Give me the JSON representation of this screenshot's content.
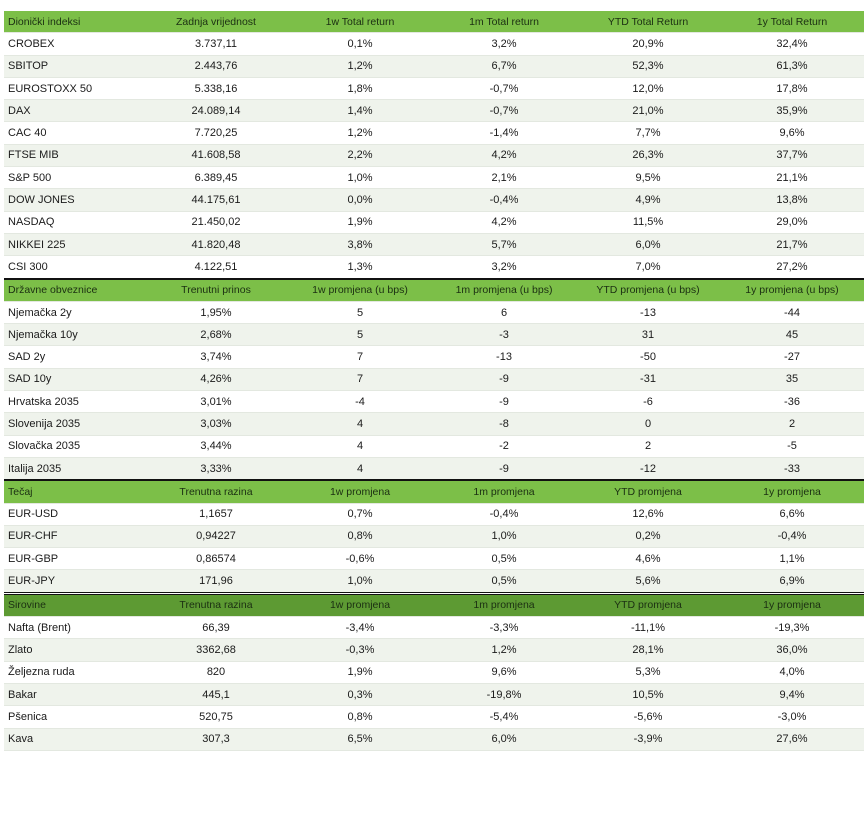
{
  "colors": {
    "header_bg": "#7cbf48",
    "header_bg_dark": "#5d9a33",
    "row_alt_bg": "#eff3ec",
    "row_bg": "#ffffff"
  },
  "sections": [
    {
      "header": [
        "Dionički indeksi",
        "Zadnja vrijednost",
        "1w Total return",
        "1m Total return",
        "YTD Total Return",
        "1y Total Return"
      ],
      "header_color": "#7cbf48",
      "rows": [
        [
          "CROBEX",
          "3.737,11",
          "0,1%",
          "3,2%",
          "20,9%",
          "32,4%"
        ],
        [
          "SBITOP",
          "2.443,76",
          "1,2%",
          "6,7%",
          "52,3%",
          "61,3%"
        ],
        [
          "EUROSTOXX 50",
          "5.338,16",
          "1,8%",
          "-0,7%",
          "12,0%",
          "17,8%"
        ],
        [
          "DAX",
          "24.089,14",
          "1,4%",
          "-0,7%",
          "21,0%",
          "35,9%"
        ],
        [
          "CAC 40",
          "7.720,25",
          "1,2%",
          "-1,4%",
          "7,7%",
          "9,6%"
        ],
        [
          "FTSE MIB",
          "41.608,58",
          "2,2%",
          "4,2%",
          "26,3%",
          "37,7%"
        ],
        [
          "S&P 500",
          "6.389,45",
          "1,0%",
          "2,1%",
          "9,5%",
          "21,1%"
        ],
        [
          "DOW JONES",
          "44.175,61",
          "0,0%",
          "-0,4%",
          "4,9%",
          "13,8%"
        ],
        [
          "NASDAQ",
          "21.450,02",
          "1,9%",
          "4,2%",
          "11,5%",
          "29,0%"
        ],
        [
          "NIKKEI 225",
          "41.820,48",
          "3,8%",
          "5,7%",
          "6,0%",
          "21,7%"
        ],
        [
          "CSI 300",
          "4.122,51",
          "1,3%",
          "3,2%",
          "7,0%",
          "27,2%"
        ]
      ]
    },
    {
      "header": [
        "Državne obveznice",
        "Trenutni prinos",
        "1w promjena (u bps)",
        "1m promjena (u bps)",
        "YTD promjena (u bps)",
        "1y promjena (u bps)"
      ],
      "header_color": "#7cbf48",
      "rows": [
        [
          "Njemačka 2y",
          "1,95%",
          "5",
          "6",
          "-13",
          "-44"
        ],
        [
          "Njemačka 10y",
          "2,68%",
          "5",
          "-3",
          "31",
          "45"
        ],
        [
          "SAD 2y",
          "3,74%",
          "7",
          "-13",
          "-50",
          "-27"
        ],
        [
          "SAD 10y",
          "4,26%",
          "7",
          "-9",
          "-31",
          "35"
        ],
        [
          "Hrvatska 2035",
          "3,01%",
          "-4",
          "-9",
          "-6",
          "-36"
        ],
        [
          "Slovenija 2035",
          "3,03%",
          "4",
          "-8",
          "0",
          "2"
        ],
        [
          "Slovačka 2035",
          "3,44%",
          "4",
          "-2",
          "2",
          "-5"
        ],
        [
          "Italija 2035",
          "3,33%",
          "4",
          "-9",
          "-12",
          "-33"
        ]
      ]
    },
    {
      "header": [
        "Tečaj",
        "Trenutna razina",
        "1w promjena",
        "1m promjena",
        "YTD promjena",
        "1y promjena"
      ],
      "header_color": "#7cbf48",
      "rows": [
        [
          "EUR-USD",
          "1,1657",
          "0,7%",
          "-0,4%",
          "12,6%",
          "6,6%"
        ],
        [
          "EUR-CHF",
          "0,94227",
          "0,8%",
          "1,0%",
          "0,2%",
          "-0,4%"
        ],
        [
          "EUR-GBP",
          "0,86574",
          "-0,6%",
          "0,5%",
          "4,6%",
          "1,1%"
        ],
        [
          "EUR-JPY",
          "171,96",
          "1,0%",
          "0,5%",
          "5,6%",
          "6,9%"
        ]
      ]
    },
    {
      "header": [
        "Sirovine",
        "Trenutna razina",
        "1w promjena",
        "1m promjena",
        "YTD promjena",
        "1y promjena"
      ],
      "header_color": "#5d9a33",
      "rows": [
        [
          "Nafta (Brent)",
          "66,39",
          "-3,4%",
          "-3,3%",
          "-11,1%",
          "-19,3%"
        ],
        [
          "Zlato",
          "3362,68",
          "-0,3%",
          "1,2%",
          "28,1%",
          "36,0%"
        ],
        [
          "Željezna ruda",
          "820",
          "1,9%",
          "9,6%",
          "5,3%",
          "4,0%"
        ],
        [
          "Bakar",
          "445,1",
          "0,3%",
          "-19,8%",
          "10,5%",
          "9,4%"
        ],
        [
          "Pšenica",
          "520,75",
          "0,8%",
          "-5,4%",
          "-5,6%",
          "-3,0%"
        ],
        [
          "Kava",
          "307,3",
          "6,5%",
          "6,0%",
          "-3,9%",
          "27,6%"
        ]
      ]
    }
  ]
}
